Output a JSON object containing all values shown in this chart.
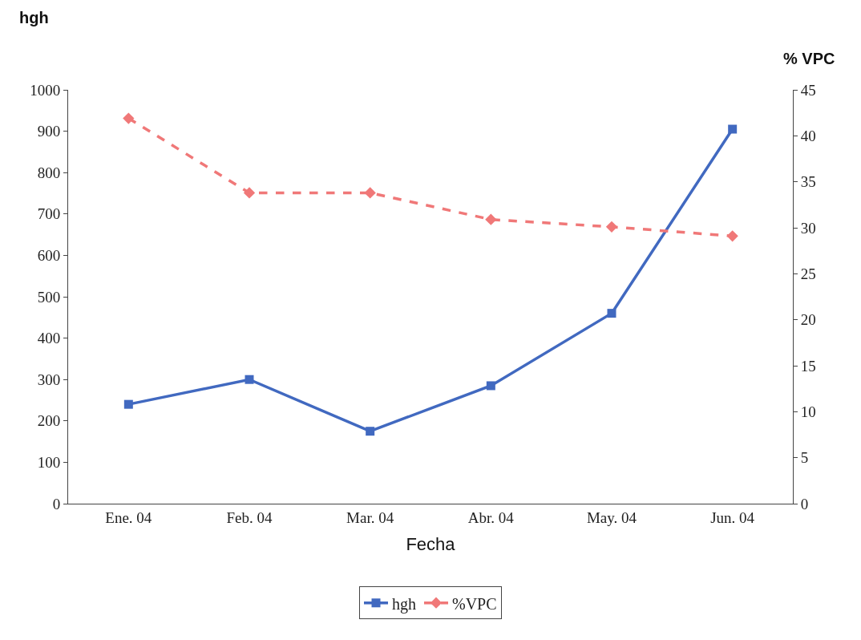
{
  "chart_data": {
    "type": "line",
    "xlabel": "Fecha",
    "ylabel": "hgh",
    "y2label": "% VPC",
    "categories": [
      "Ene. 04",
      "Feb. 04",
      "Mar. 04",
      "Abr. 04",
      "May. 04",
      "Jun. 04"
    ],
    "series": [
      {
        "name": "hgh",
        "color": "#4169c0",
        "values": [
          240,
          300,
          175,
          285,
          460,
          905
        ],
        "marker": "square",
        "line_style": "solid"
      },
      {
        "name": "%VPC",
        "color": "#f07878",
        "values": [
          41.9,
          33.8,
          33.8,
          30.9,
          30.1,
          29.1
        ],
        "axis": "y2",
        "marker": "diamond",
        "line_style": "dashed"
      }
    ],
    "ylim": [
      0,
      1000
    ],
    "yticks": [
      0,
      100,
      200,
      300,
      400,
      500,
      600,
      700,
      800,
      900,
      1000
    ],
    "y2lim": [
      0,
      45
    ],
    "y2ticks": [
      0,
      5,
      10,
      15,
      20,
      25,
      30,
      35,
      40,
      45
    ],
    "legend": "bottom"
  }
}
